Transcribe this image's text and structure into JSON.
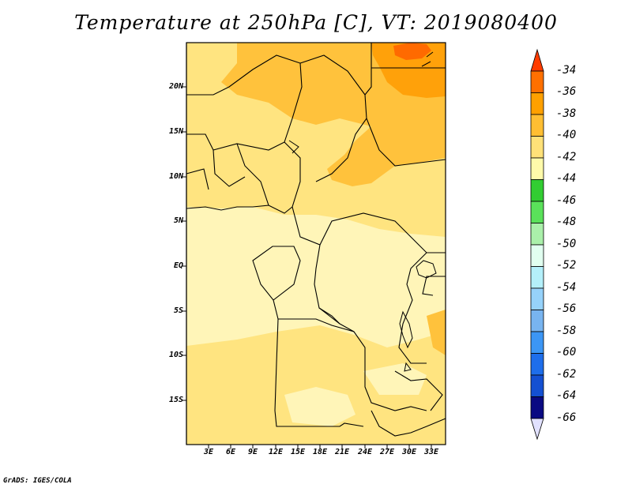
{
  "title": "Temperature at 250hPa [C], VT: 2019080400",
  "credit": "GrADS: IGES/COLA",
  "lat_labels": [
    "20N",
    "15N",
    "10N",
    "5N",
    "EQ",
    "5S",
    "10S",
    "15S"
  ],
  "lon_labels": [
    "3E",
    "6E",
    "9E",
    "12E",
    "15E",
    "18E",
    "21E",
    "24E",
    "27E",
    "30E",
    "33E"
  ],
  "legend": {
    "labels": [
      "-34",
      "-36",
      "-38",
      "-40",
      "-42",
      "-44",
      "-46",
      "-48",
      "-50",
      "-52",
      "-54",
      "-56",
      "-58",
      "-60",
      "-62",
      "-64",
      "-66"
    ],
    "colors": [
      "#ff3c00",
      "#ff7000",
      "#ffa000",
      "#ffbe32",
      "#ffe178",
      "#fffaaa",
      "#32cd32",
      "#5ae15a",
      "#aaf0aa",
      "#e1fff0",
      "#b4f0fa",
      "#96d2fa",
      "#78b4f0",
      "#3c96f5",
      "#1e6eeb",
      "#1450d2",
      "#0a0a82",
      "#e1e1ff"
    ]
  },
  "colors": {
    "c42": "#fff5b8",
    "c40": "#ffe480",
    "c38": "#ffc23c",
    "c36": "#ffa10a",
    "c34": "#ff6a00"
  }
}
